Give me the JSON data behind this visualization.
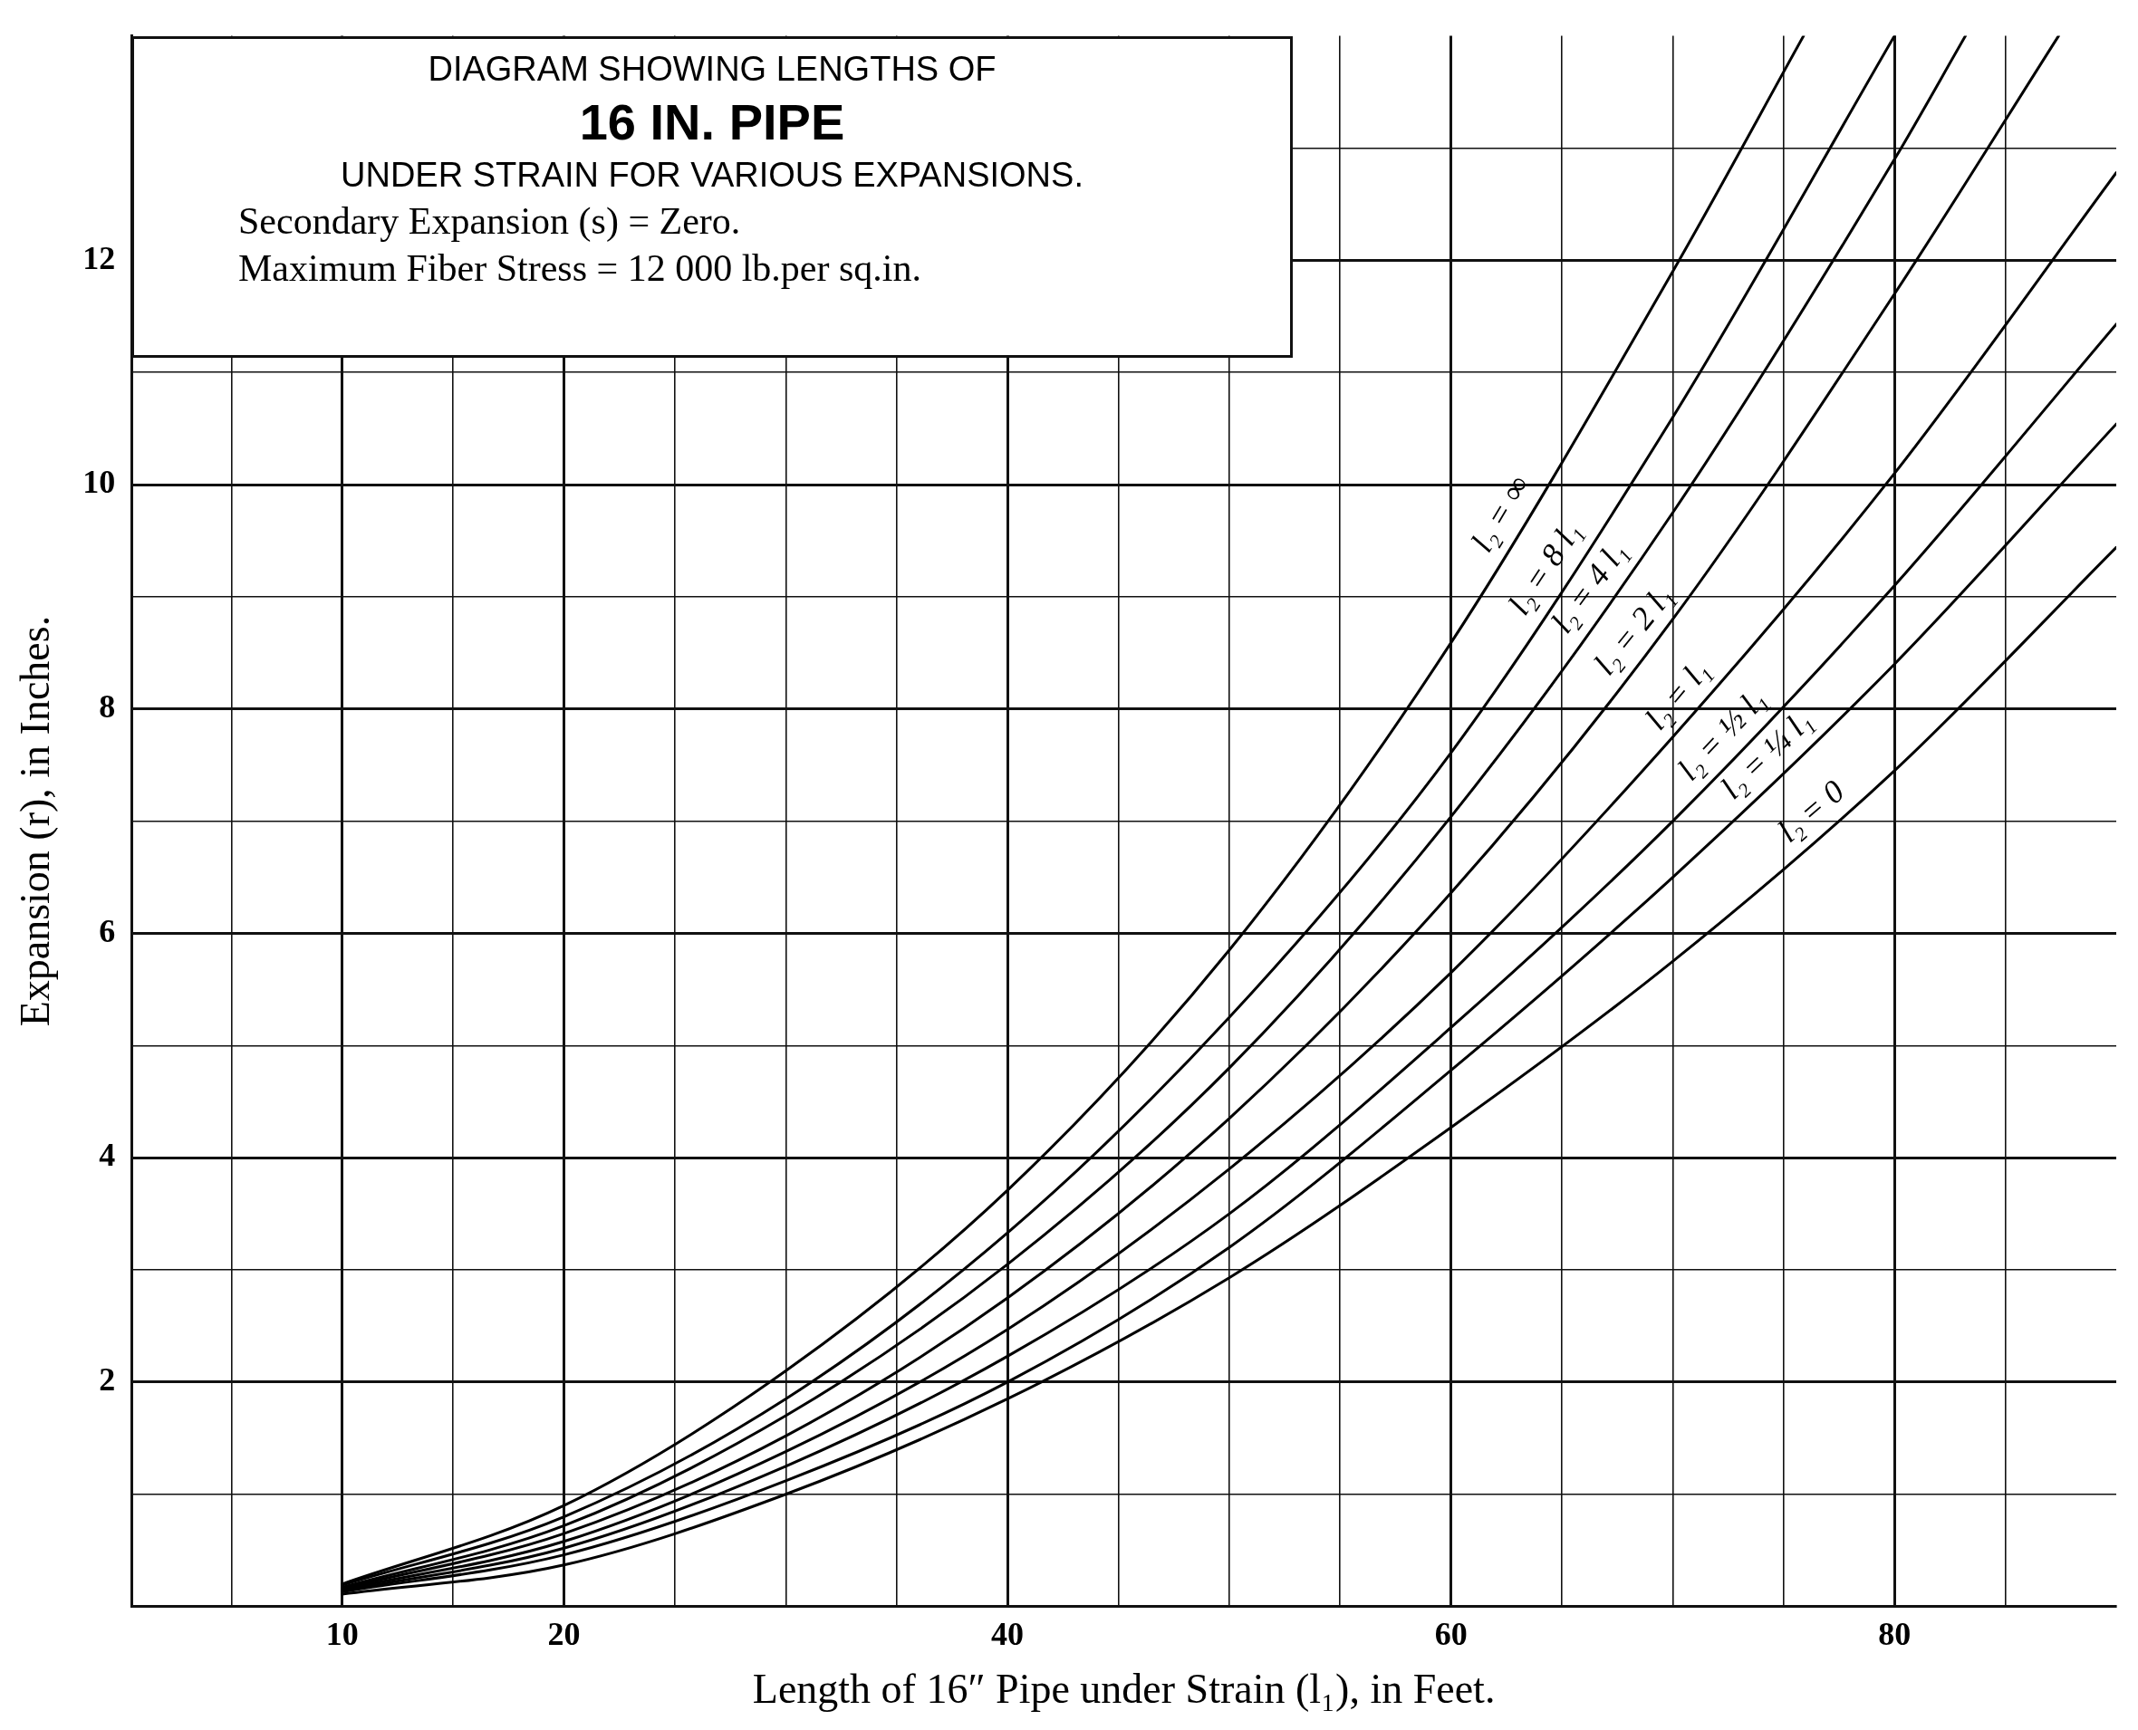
{
  "chart_data": {
    "type": "line",
    "title": "DIAGRAM SHOWING LENGTHS OF",
    "subtitle": "16 IN. PIPE",
    "annotations": [
      "UNDER STRAIN FOR VARIOUS EXPANSIONS.",
      "Secondary Expansion (s) = Zero.",
      "Maximum Fiber Stress = 12 000 lb.per sq.in."
    ],
    "xlabel": "Length of 16″ Pipe under Strain (l₁), in Feet.",
    "ylabel": "Expansion (r), in Inches.",
    "xlim": [
      0.5,
      90
    ],
    "ylim": [
      0,
      14
    ],
    "xticks": [
      {
        "value": 5,
        "label": null
      },
      10,
      {
        "value": 15,
        "label": null
      },
      20,
      {
        "value": 25,
        "label": null
      },
      {
        "value": 30,
        "label": null
      },
      {
        "value": 35,
        "label": null
      },
      40,
      {
        "value": 45,
        "label": null
      },
      {
        "value": 50,
        "label": null
      },
      {
        "value": 55,
        "label": null
      },
      60,
      {
        "value": 65,
        "label": null
      },
      {
        "value": 70,
        "label": null
      },
      {
        "value": 75,
        "label": null
      },
      80,
      {
        "value": 85,
        "label": null
      }
    ],
    "yticks": [
      {
        "value": 1,
        "label": null
      },
      2,
      {
        "value": 3,
        "label": null
      },
      4,
      {
        "value": 5,
        "label": null
      },
      6,
      {
        "value": 7,
        "label": null
      },
      8,
      {
        "value": 9,
        "label": null
      },
      10,
      {
        "value": 11,
        "label": null
      },
      12,
      {
        "value": 13,
        "label": null
      }
    ],
    "grid": true,
    "legend": false,
    "marker": "none",
    "line_style": "solid",
    "series": [
      {
        "name": "l₂ = ∞",
        "color": "#000000",
        "x": [
          10,
          20,
          30,
          40,
          50,
          60,
          70,
          75.9
        ],
        "values": [
          0.2,
          0.9,
          2.1,
          3.71,
          5.85,
          8.59,
          11.9,
          14
        ]
      },
      {
        "name": "l₂ = 8 l₁",
        "color": "#000000",
        "x": [
          10,
          20,
          30,
          40,
          50,
          60,
          70,
          80
        ],
        "values": [
          0.19,
          0.8,
          1.85,
          3.33,
          5.25,
          7.61,
          10.6,
          14
        ]
      },
      {
        "name": "l₂ = 4 l₁",
        "color": "#000000",
        "x": [
          10,
          20,
          30,
          40,
          50,
          60,
          70,
          80,
          83.2
        ],
        "values": [
          0.17,
          0.72,
          1.7,
          3.05,
          4.8,
          7.04,
          9.75,
          12.9,
          14
        ]
      },
      {
        "name": "l₂ = 2 l₁",
        "color": "#000000",
        "x": [
          10,
          20,
          30,
          40,
          50,
          60,
          70,
          80,
          87.4
        ],
        "values": [
          0.16,
          0.65,
          1.52,
          2.75,
          4.35,
          6.36,
          8.8,
          11.7,
          14
        ]
      },
      {
        "name": "l₂ = l₁",
        "color": "#000000",
        "x": [
          10,
          20,
          30,
          40,
          50,
          60,
          70,
          80,
          90
        ],
        "values": [
          0.15,
          0.58,
          1.38,
          2.47,
          3.9,
          5.65,
          7.75,
          10.1,
          12.78
        ]
      },
      {
        "name": "l₂ = ½ l₁",
        "color": "#000000",
        "x": [
          10,
          20,
          30,
          40,
          50,
          60,
          70,
          80,
          90
        ],
        "values": [
          0.14,
          0.52,
          1.25,
          2.23,
          3.5,
          5.16,
          7.0,
          9.1,
          11.43
        ]
      },
      {
        "name": "l₂ = ¼ l₁",
        "color": "#000000",
        "x": [
          10,
          20,
          30,
          40,
          50,
          60,
          70,
          80,
          90
        ],
        "values": [
          0.13,
          0.46,
          1.12,
          2.0,
          3.2,
          4.78,
          6.5,
          8.4,
          10.54
        ]
      },
      {
        "name": "l₂ = 0",
        "color": "#000000",
        "x": [
          10,
          20,
          30,
          40,
          50,
          60,
          70,
          80,
          90
        ],
        "values": [
          0.11,
          0.37,
          1.0,
          1.85,
          2.93,
          4.27,
          5.75,
          7.45,
          9.44
        ]
      }
    ]
  }
}
